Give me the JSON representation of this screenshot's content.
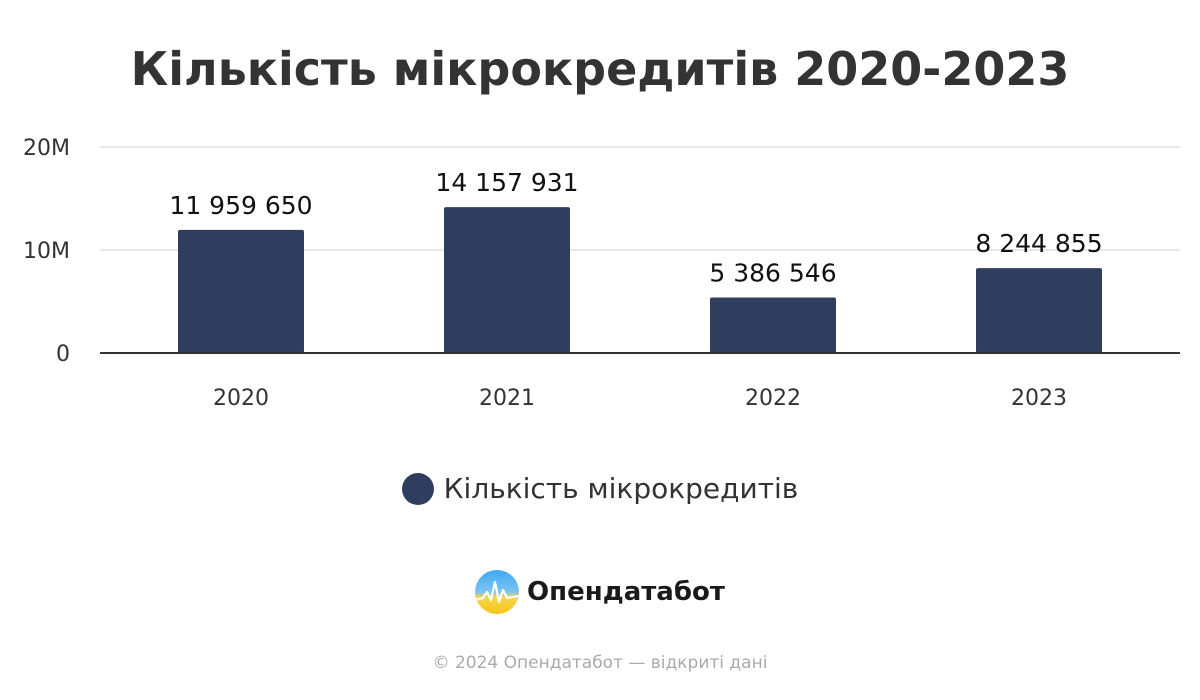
{
  "chart_data": {
    "type": "bar",
    "title": "Кількість мікрокредитів 2020-2023",
    "categories": [
      "2020",
      "2021",
      "2022",
      "2023"
    ],
    "series": [
      {
        "name": "Кількість мікрокредитів",
        "values": [
          11959650,
          14157931,
          5386546,
          8244855
        ],
        "labels": [
          "11 959 650",
          "14 157 931",
          "5 386 546",
          "8 244 855"
        ]
      }
    ],
    "ylim": [
      0,
      20000000
    ],
    "yticks": [
      0,
      10000000,
      20000000
    ],
    "ytick_labels": [
      "0",
      "10M",
      "20M"
    ],
    "xlabel": "",
    "ylabel": "",
    "grid": true,
    "legend_position": "bottom",
    "bar_color": "#2f3e5e"
  },
  "brand": {
    "name": "Опендатабот",
    "logo_icon": "opendatabot-logo-icon"
  },
  "footer": {
    "text": "© 2024 Опендатабот — відкриті дані"
  }
}
